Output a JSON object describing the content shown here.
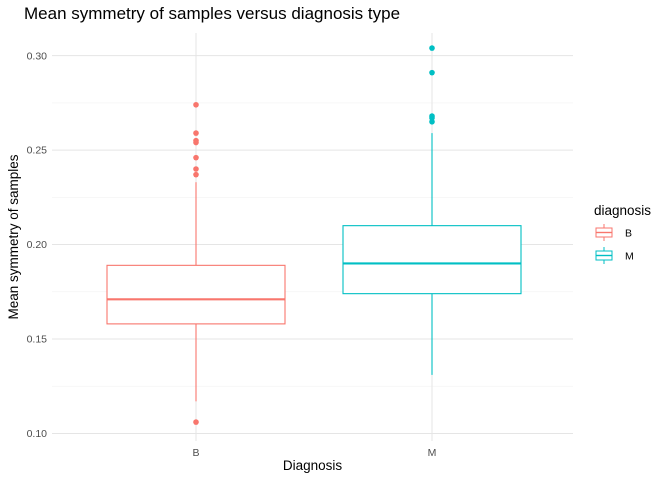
{
  "chart_data": {
    "type": "boxplot",
    "title": "Mean symmetry of samples versus diagnosis type",
    "xlabel": "Diagnosis",
    "ylabel": "Mean symmetry of samples",
    "categories": [
      "B",
      "M"
    ],
    "ylim": [
      0.096,
      0.312
    ],
    "yticks": [
      0.1,
      0.15,
      0.2,
      0.25,
      0.3
    ],
    "ytick_labels": [
      "0.10",
      "0.15",
      "0.20",
      "0.25",
      "0.30"
    ],
    "grid": true,
    "legend": {
      "title": "diagnosis",
      "placement": "right",
      "entries": [
        "B",
        "M"
      ]
    },
    "series": [
      {
        "category": "B",
        "color": "#F8766D",
        "whisker_low": 0.117,
        "q1": 0.158,
        "median": 0.171,
        "q3": 0.189,
        "whisker_high": 0.233,
        "outliers": [
          0.106,
          0.237,
          0.24,
          0.246,
          0.254,
          0.255,
          0.259,
          0.274
        ]
      },
      {
        "category": "M",
        "color": "#00BFC4",
        "whisker_low": 0.131,
        "q1": 0.174,
        "median": 0.19,
        "q3": 0.21,
        "whisker_high": 0.259,
        "outliers": [
          0.265,
          0.267,
          0.268,
          0.291,
          0.304
        ]
      }
    ]
  }
}
